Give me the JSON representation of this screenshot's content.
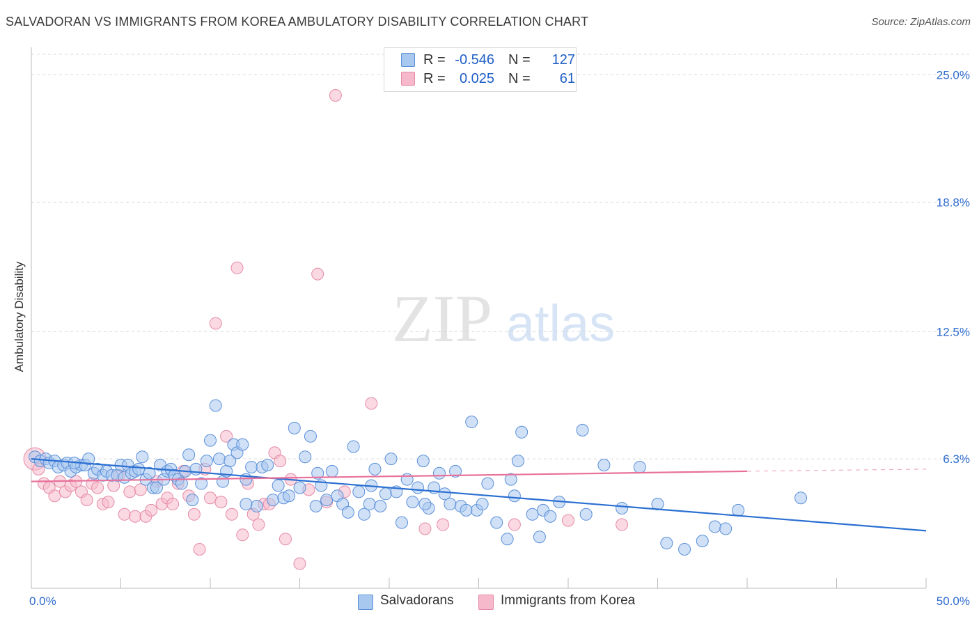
{
  "title": "SALVADORAN VS IMMIGRANTS FROM KOREA AMBULATORY DISABILITY CORRELATION CHART",
  "source": "Source: ZipAtlas.com",
  "watermark": {
    "zip": "ZIP",
    "atlas": "atlas"
  },
  "legend": {
    "rows": [
      {
        "r_label": "R =",
        "r_value": "-0.546",
        "n_label": "N =",
        "n_value": "127"
      },
      {
        "r_label": "R =",
        "r_value": "0.025",
        "n_label": "N =",
        "n_value": "61"
      }
    ]
  },
  "bottom_legend": {
    "series0": "Salvadorans",
    "series1": "Immigrants from Korea"
  },
  "colors": {
    "blue_fill": "#a9c8f0",
    "blue_stroke": "#5a8fd8",
    "blue_line": "#2a6fd1",
    "pink_fill": "#f6b9cc",
    "pink_stroke": "#e58aa6",
    "pink_line": "#e8719b",
    "grid": "#d9d9d9",
    "tick_text": "#2f6ccf"
  },
  "chart_data": {
    "type": "scatter",
    "title": "SALVADORAN VS IMMIGRANTS FROM KOREA AMBULATORY DISABILITY CORRELATION CHART",
    "xlabel": "",
    "ylabel": "Ambulatory Disability",
    "xlim": [
      0,
      50
    ],
    "ylim": [
      0,
      26
    ],
    "x_tick_labels": [
      "0.0%",
      "50.0%"
    ],
    "y_ticks": [
      6.3,
      12.5,
      18.8,
      25.0
    ],
    "y_tick_labels": [
      "6.3%",
      "12.5%",
      "18.8%",
      "25.0%"
    ],
    "grid": "horizontal dashed",
    "legend_position": "top-center",
    "series": [
      {
        "name": "Salvadorans",
        "r": -0.546,
        "n": 127,
        "trend": {
          "x": [
            0,
            50
          ],
          "y": [
            6.3,
            2.8
          ]
        },
        "points": [
          [
            0.2,
            6.4
          ],
          [
            0.5,
            6.2
          ],
          [
            0.8,
            6.3
          ],
          [
            1.0,
            6.1
          ],
          [
            1.3,
            6.2
          ],
          [
            1.5,
            5.9
          ],
          [
            1.8,
            6.0
          ],
          [
            2.0,
            6.1
          ],
          [
            2.2,
            5.7
          ],
          [
            2.5,
            5.9
          ],
          [
            2.8,
            6.0
          ],
          [
            3.0,
            6.0
          ],
          [
            3.2,
            6.3
          ],
          [
            3.5,
            5.6
          ],
          [
            3.7,
            5.8
          ],
          [
            4.0,
            5.5
          ],
          [
            4.2,
            5.7
          ],
          [
            4.5,
            5.5
          ],
          [
            4.8,
            5.5
          ],
          [
            5.0,
            6.0
          ],
          [
            5.2,
            5.4
          ],
          [
            5.4,
            6.0
          ],
          [
            5.6,
            5.6
          ],
          [
            5.8,
            5.7
          ],
          [
            6.0,
            5.8
          ],
          [
            6.2,
            6.4
          ],
          [
            6.4,
            5.3
          ],
          [
            6.6,
            5.6
          ],
          [
            6.8,
            4.9
          ],
          [
            7.0,
            4.9
          ],
          [
            7.2,
            6.0
          ],
          [
            7.4,
            5.3
          ],
          [
            7.6,
            5.7
          ],
          [
            7.8,
            5.8
          ],
          [
            8.0,
            5.5
          ],
          [
            8.2,
            5.3
          ],
          [
            8.4,
            5.1
          ],
          [
            8.6,
            5.7
          ],
          [
            8.8,
            6.5
          ],
          [
            9.0,
            4.3
          ],
          [
            9.2,
            5.8
          ],
          [
            9.5,
            5.1
          ],
          [
            9.8,
            6.2
          ],
          [
            10.0,
            7.2
          ],
          [
            10.3,
            8.9
          ],
          [
            10.5,
            6.3
          ],
          [
            10.7,
            5.2
          ],
          [
            10.9,
            5.7
          ],
          [
            11.1,
            6.2
          ],
          [
            11.3,
            7.0
          ],
          [
            11.5,
            6.6
          ],
          [
            11.8,
            7.0
          ],
          [
            12.0,
            5.3
          ],
          [
            12.3,
            5.9
          ],
          [
            12.6,
            4.0
          ],
          [
            12.9,
            5.9
          ],
          [
            13.2,
            6.0
          ],
          [
            13.5,
            4.3
          ],
          [
            13.8,
            5.0
          ],
          [
            14.1,
            4.4
          ],
          [
            14.4,
            4.5
          ],
          [
            14.7,
            7.8
          ],
          [
            15.0,
            4.9
          ],
          [
            15.3,
            6.4
          ],
          [
            15.6,
            7.4
          ],
          [
            15.9,
            4.0
          ],
          [
            16.2,
            5.0
          ],
          [
            16.5,
            4.3
          ],
          [
            16.8,
            5.7
          ],
          [
            17.1,
            4.5
          ],
          [
            17.4,
            4.1
          ],
          [
            17.7,
            3.7
          ],
          [
            18.0,
            6.9
          ],
          [
            18.3,
            4.7
          ],
          [
            18.6,
            3.6
          ],
          [
            18.9,
            4.1
          ],
          [
            19.2,
            5.8
          ],
          [
            19.5,
            4.0
          ],
          [
            19.8,
            4.6
          ],
          [
            20.1,
            6.3
          ],
          [
            20.4,
            4.7
          ],
          [
            20.7,
            3.2
          ],
          [
            21.0,
            5.3
          ],
          [
            21.3,
            4.2
          ],
          [
            21.6,
            4.9
          ],
          [
            21.9,
            6.2
          ],
          [
            22.2,
            3.9
          ],
          [
            22.5,
            4.9
          ],
          [
            22.8,
            5.6
          ],
          [
            23.1,
            4.6
          ],
          [
            23.4,
            4.1
          ],
          [
            23.7,
            5.7
          ],
          [
            24.0,
            4.0
          ],
          [
            24.3,
            3.8
          ],
          [
            24.6,
            8.1
          ],
          [
            24.9,
            3.8
          ],
          [
            25.2,
            4.1
          ],
          [
            26.0,
            3.2
          ],
          [
            26.6,
            2.4
          ],
          [
            26.8,
            5.3
          ],
          [
            27.0,
            4.5
          ],
          [
            27.2,
            6.2
          ],
          [
            27.4,
            7.6
          ],
          [
            28.0,
            3.6
          ],
          [
            28.4,
            2.5
          ],
          [
            28.6,
            3.8
          ],
          [
            29.0,
            3.5
          ],
          [
            30.8,
            7.7
          ],
          [
            31.0,
            3.6
          ],
          [
            32.0,
            6.0
          ],
          [
            33.0,
            3.9
          ],
          [
            34.0,
            5.9
          ],
          [
            35.0,
            4.1
          ],
          [
            35.5,
            2.2
          ],
          [
            36.5,
            1.9
          ],
          [
            37.5,
            2.3
          ],
          [
            38.2,
            3.0
          ],
          [
            38.8,
            2.9
          ],
          [
            39.5,
            3.8
          ],
          [
            43.0,
            4.4
          ],
          [
            12.0,
            4.1
          ],
          [
            16.0,
            5.6
          ],
          [
            19.0,
            5.0
          ],
          [
            22.0,
            4.1
          ],
          [
            25.5,
            5.1
          ],
          [
            29.5,
            4.2
          ],
          [
            2.4,
            6.1
          ]
        ]
      },
      {
        "name": "Immigrants from Korea",
        "r": 0.025,
        "n": 61,
        "trend": {
          "x": [
            0,
            40
          ],
          "y": [
            5.2,
            5.7
          ]
        },
        "trend_dashed": {
          "x": [
            40,
            50
          ],
          "y": [
            5.7,
            5.8
          ]
        },
        "points": [
          [
            0.2,
            6.3
          ],
          [
            0.4,
            5.8
          ],
          [
            0.7,
            5.1
          ],
          [
            1.0,
            4.9
          ],
          [
            1.3,
            4.5
          ],
          [
            1.6,
            5.2
          ],
          [
            1.9,
            4.7
          ],
          [
            2.2,
            5.0
          ],
          [
            2.5,
            5.2
          ],
          [
            2.8,
            4.7
          ],
          [
            3.1,
            4.3
          ],
          [
            3.4,
            5.1
          ],
          [
            3.7,
            4.9
          ],
          [
            4.0,
            4.1
          ],
          [
            4.3,
            4.2
          ],
          [
            4.6,
            5.0
          ],
          [
            4.9,
            5.5
          ],
          [
            5.2,
            3.6
          ],
          [
            5.5,
            4.7
          ],
          [
            5.8,
            3.5
          ],
          [
            6.1,
            4.8
          ],
          [
            6.4,
            3.5
          ],
          [
            6.7,
            3.8
          ],
          [
            7.0,
            5.2
          ],
          [
            7.3,
            4.1
          ],
          [
            7.6,
            4.4
          ],
          [
            7.9,
            4.1
          ],
          [
            8.2,
            5.1
          ],
          [
            8.5,
            5.7
          ],
          [
            8.8,
            4.5
          ],
          [
            9.1,
            3.6
          ],
          [
            9.4,
            1.9
          ],
          [
            9.7,
            5.8
          ],
          [
            10.0,
            4.4
          ],
          [
            10.3,
            12.9
          ],
          [
            10.6,
            4.2
          ],
          [
            10.9,
            7.4
          ],
          [
            11.2,
            3.6
          ],
          [
            11.5,
            15.6
          ],
          [
            11.8,
            2.6
          ],
          [
            12.1,
            5.1
          ],
          [
            12.4,
            3.6
          ],
          [
            12.7,
            3.1
          ],
          [
            13.0,
            4.1
          ],
          [
            13.3,
            4.1
          ],
          [
            13.6,
            6.6
          ],
          [
            13.9,
            6.2
          ],
          [
            14.2,
            2.4
          ],
          [
            14.5,
            5.3
          ],
          [
            15.0,
            1.2
          ],
          [
            15.5,
            4.8
          ],
          [
            16.0,
            15.3
          ],
          [
            16.5,
            4.2
          ],
          [
            17.0,
            24.0
          ],
          [
            17.5,
            4.7
          ],
          [
            19.0,
            9.0
          ],
          [
            22.0,
            2.9
          ],
          [
            23.0,
            3.1
          ],
          [
            27.0,
            3.1
          ],
          [
            30.0,
            3.3
          ],
          [
            33.0,
            3.1
          ]
        ]
      }
    ]
  }
}
